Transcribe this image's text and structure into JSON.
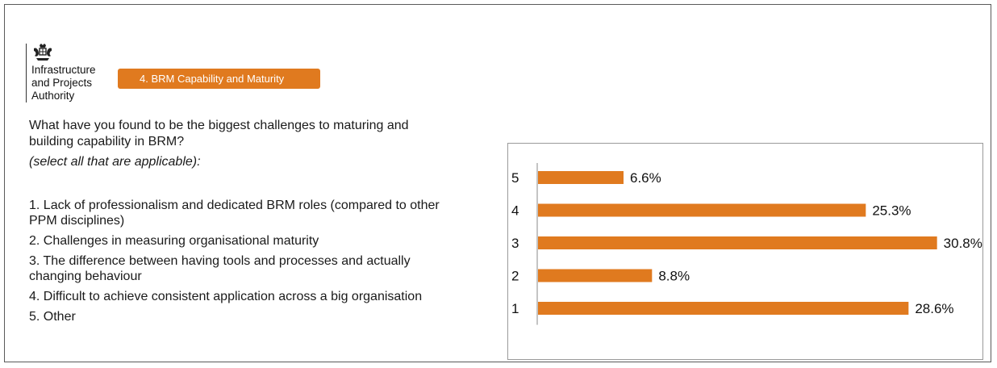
{
  "header": {
    "organisation": "Infrastructure\nand Projects\nAuthority",
    "logo_icon": "royal-crest-icon",
    "section_tag": "4. BRM Capability and Maturity",
    "accent_color": "#e07a1f"
  },
  "question": {
    "text": "What have you found to be the biggest challenges to maturing and building capability in BRM?",
    "hint": "(select all that are applicable):"
  },
  "options": [
    "1. Lack of professionalism and dedicated BRM roles (compared to other PPM disciplines)",
    "2. Challenges in measuring organisational maturity",
    "3. The difference between having tools and processes and actually changing behaviour",
    "4. Difficult to achieve consistent application across a big organisation",
    "5. Other"
  ],
  "chart_data": {
    "type": "bar",
    "orientation": "horizontal",
    "categories": [
      "5",
      "4",
      "3",
      "2",
      "1"
    ],
    "values": [
      6.6,
      25.3,
      30.8,
      8.8,
      28.6
    ],
    "value_labels": [
      "6.6%",
      "25.3%",
      "30.8%",
      "8.8%",
      "28.6%"
    ],
    "xlim": [
      0,
      33
    ],
    "bar_color": "#e07a1f",
    "grid": false,
    "legend": "none"
  }
}
